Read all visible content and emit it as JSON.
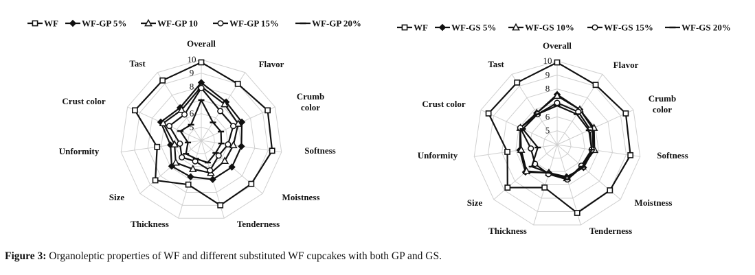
{
  "chart_data": [
    {
      "type": "radar",
      "scale": [
        4,
        10
      ],
      "ticks": [
        5,
        6,
        8,
        9,
        10
      ],
      "axes": [
        "Overall",
        "Flavor",
        "Crumb color",
        "Softness",
        "Moistness",
        "Tenderness",
        "Thickness",
        "Size",
        "Unformity",
        "Crust color",
        "Tast"
      ],
      "legend_position": "top",
      "series": [
        {
          "name": "WF",
          "marker": "square",
          "values": [
            9.8,
            9.0,
            9.4,
            9.3,
            8.9,
            9.0,
            7.4,
            8.5,
            7.3,
            9.4,
            9.3
          ]
        },
        {
          "name": "WF-GP 5%",
          "marker": "diamond",
          "values": [
            8.3,
            7.4,
            7.3,
            7.0,
            7.0,
            7.0,
            6.8,
            6.9,
            6.3,
            7.3,
            6.9
          ]
        },
        {
          "name": "WF-GP 10",
          "marker": "triangle",
          "values": [
            8.0,
            7.2,
            7.0,
            6.4,
            6.3,
            6.5,
            6.2,
            6.5,
            6.0,
            7.1,
            6.7
          ]
        },
        {
          "name": "WF-GP 15%",
          "marker": "circle",
          "values": [
            7.9,
            6.6,
            6.6,
            6.0,
            5.7,
            6.3,
            5.6,
            5.9,
            5.6,
            6.6,
            6.3
          ]
        },
        {
          "name": "WF-GP 20%",
          "marker": "dash",
          "values": [
            7.0,
            5.6,
            5.6,
            5.5,
            5.4,
            5.7,
            5.4,
            5.5,
            5.0,
            5.7,
            5.4
          ]
        }
      ]
    },
    {
      "type": "radar",
      "scale": [
        4,
        10
      ],
      "ticks": [
        5,
        6,
        8,
        9,
        10
      ],
      "axes": [
        "Overall",
        "Flavor",
        "Crumb color",
        "Softness",
        "Moistness",
        "Tenderness",
        "Thickness",
        "Size",
        "Unformity",
        "Crust color",
        "Tast"
      ],
      "legend_position": "top",
      "series": [
        {
          "name": "WF",
          "marker": "square",
          "values": [
            9.9,
            9.1,
            9.4,
            9.3,
            9.0,
            9.1,
            7.2,
            8.7,
            7.6,
            9.4,
            9.3
          ]
        },
        {
          "name": "WF-GS 5%",
          "marker": "diamond",
          "values": [
            7.6,
            7.0,
            6.8,
            6.6,
            6.5,
            6.4,
            6.1,
            7.0,
            6.7,
            6.9,
            6.7
          ]
        },
        {
          "name": "WF-GS 10%",
          "marker": "triangle",
          "values": [
            7.5,
            7.0,
            6.9,
            6.7,
            6.4,
            6.5,
            6.1,
            6.9,
            6.6,
            6.9,
            6.7
          ]
        },
        {
          "name": "WF-GS 15%",
          "marker": "circle",
          "values": [
            7.0,
            6.8,
            6.6,
            6.5,
            6.3,
            6.6,
            6.2,
            6.1,
            5.9,
            6.9,
            6.6
          ]
        },
        {
          "name": "WF-GS 20%",
          "marker": "dash",
          "values": [
            6.8,
            6.6,
            6.5,
            6.5,
            6.4,
            6.6,
            6.1,
            6.4,
            5.4,
            6.7,
            6.6
          ]
        }
      ]
    }
  ],
  "caption": {
    "label": "Figure 3:",
    "text": " Organoleptic properties of WF and different substituted WF cupcakes with both GP and GS."
  }
}
